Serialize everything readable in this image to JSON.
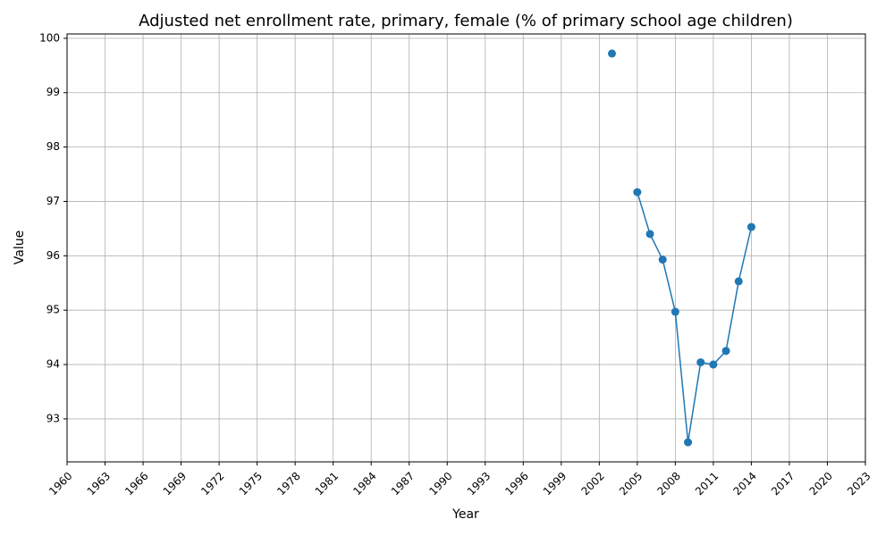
{
  "chart_data": {
    "type": "line",
    "title": "Adjusted net enrollment rate, primary, female (% of primary school age children)",
    "x_label": "Year",
    "y_label": "Value",
    "x": [
      2003,
      2004,
      2005,
      2006,
      2007,
      2008,
      2009,
      2010,
      2011,
      2012,
      2013,
      2014
    ],
    "values": [
      99.72,
      null,
      97.17,
      96.4,
      95.93,
      94.97,
      92.57,
      94.04,
      94.0,
      94.25,
      95.53,
      96.53
    ],
    "color": "#1f77b4",
    "xlim": [
      1960,
      2023
    ],
    "xticks": [
      1960,
      1963,
      1966,
      1969,
      1972,
      1975,
      1978,
      1981,
      1984,
      1987,
      1990,
      1993,
      1996,
      1999,
      2002,
      2005,
      2008,
      2011,
      2014,
      2017,
      2020,
      2023
    ],
    "ylim": [
      92.21,
      100.08
    ],
    "yticks": [
      93,
      94,
      95,
      96,
      97,
      98,
      99,
      100
    ],
    "grid": true
  }
}
